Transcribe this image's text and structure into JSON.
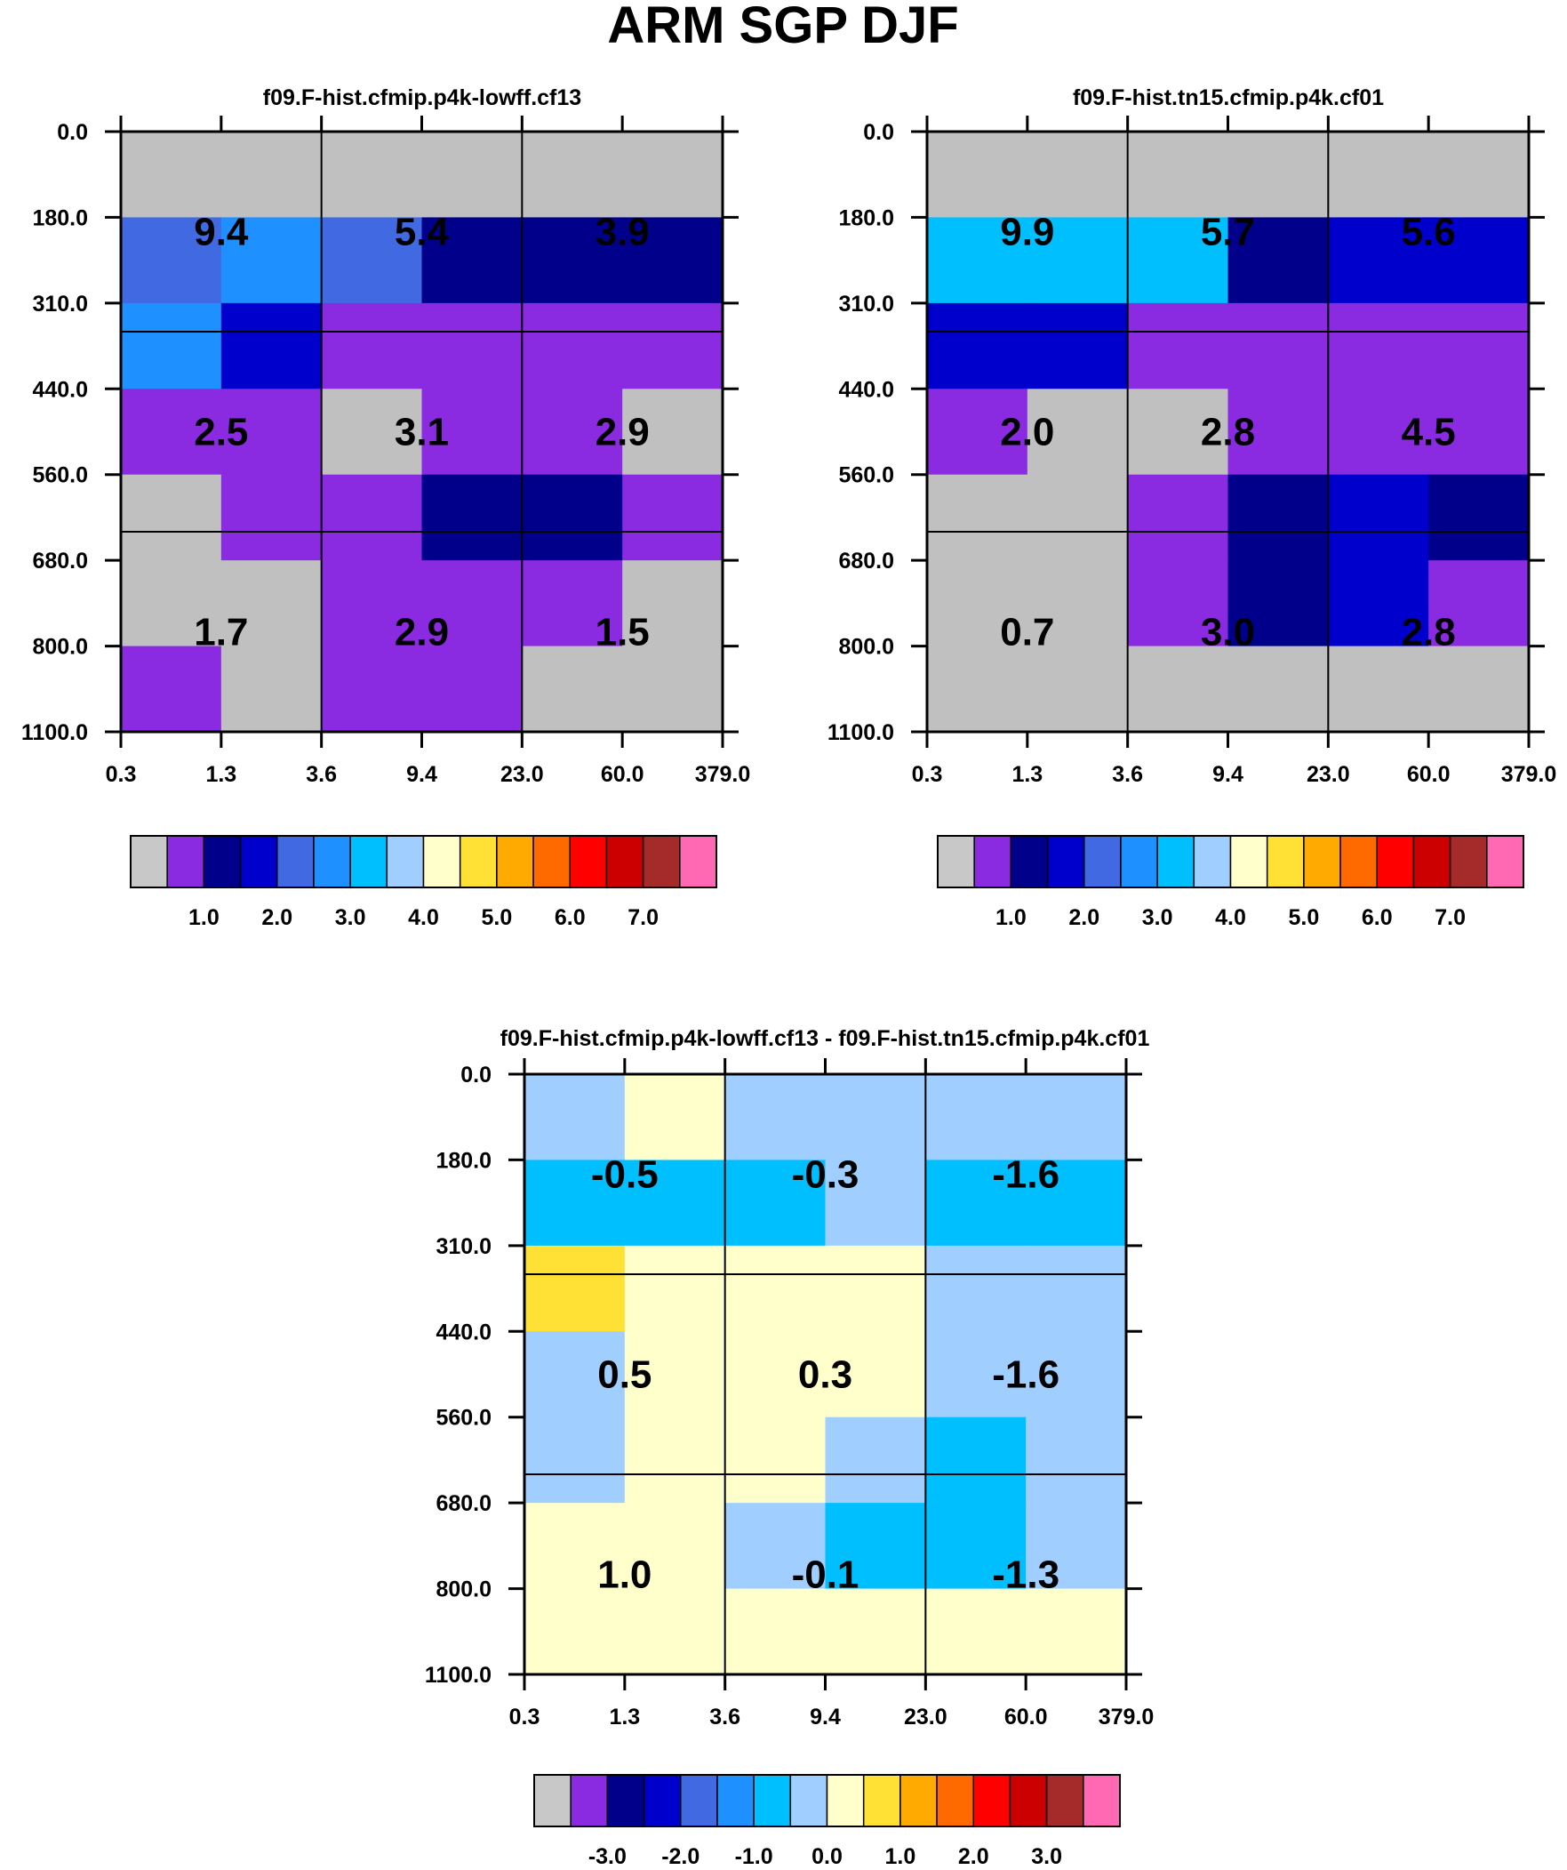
{
  "title": "ARM SGP DJF",
  "chart_data": [
    {
      "type": "heatmap",
      "title": "f09.F-hist.cfmip.p4k-lowff.cf13",
      "x_ticks": [
        "0.3",
        "1.3",
        "3.6",
        "9.4",
        "23.0",
        "60.0",
        "379.0"
      ],
      "y_ticks": [
        "0.0",
        "180.0",
        "310.0",
        "440.0",
        "560.0",
        "680.0",
        "800.0",
        "1100.0"
      ],
      "cell_colors": [
        [
          "#c0c0c0",
          "#c0c0c0",
          "#c0c0c0",
          "#c0c0c0",
          "#c0c0c0",
          "#c0c0c0"
        ],
        [
          "#4169e1",
          "#1e90ff",
          "#4169e1",
          "#00008b",
          "#00008b",
          "#00008b"
        ],
        [
          "#1e90ff",
          "#0000cd",
          "#8a2be2",
          "#8a2be2",
          "#8a2be2",
          "#8a2be2"
        ],
        [
          "#8a2be2",
          "#8a2be2",
          "#c0c0c0",
          "#8a2be2",
          "#8a2be2",
          "#c0c0c0"
        ],
        [
          "#c0c0c0",
          "#8a2be2",
          "#8a2be2",
          "#00008b",
          "#00008b",
          "#8a2be2"
        ],
        [
          "#c0c0c0",
          "#c0c0c0",
          "#8a2be2",
          "#8a2be2",
          "#8a2be2",
          "#c0c0c0"
        ],
        [
          "#8a2be2",
          "#c0c0c0",
          "#8a2be2",
          "#8a2be2",
          "#c0c0c0",
          "#c0c0c0"
        ]
      ],
      "group_values": [
        [
          "9.4",
          "5.4",
          "3.9"
        ],
        [
          "2.5",
          "3.1",
          "2.9"
        ],
        [
          "1.7",
          "2.9",
          "1.5"
        ]
      ],
      "colorbar": {
        "colors": [
          "#c8c8c8",
          "#8a2be2",
          "#00008b",
          "#0000cd",
          "#4169e1",
          "#1e90ff",
          "#00bfff",
          "#a0cfff",
          "#ffffcc",
          "#ffe135",
          "#ffaa00",
          "#ff6a00",
          "#ff0000",
          "#cc0000",
          "#a52a2a",
          "#ff69b4"
        ],
        "labels": [
          "1.0",
          "2.0",
          "3.0",
          "4.0",
          "5.0",
          "6.0",
          "7.0"
        ]
      }
    },
    {
      "type": "heatmap",
      "title": "f09.F-hist.tn15.cfmip.p4k.cf01",
      "x_ticks": [
        "0.3",
        "1.3",
        "3.6",
        "9.4",
        "23.0",
        "60.0",
        "379.0"
      ],
      "y_ticks": [
        "0.0",
        "180.0",
        "310.0",
        "440.0",
        "560.0",
        "680.0",
        "800.0",
        "1100.0"
      ],
      "cell_colors": [
        [
          "#c0c0c0",
          "#c0c0c0",
          "#c0c0c0",
          "#c0c0c0",
          "#c0c0c0",
          "#c0c0c0"
        ],
        [
          "#00bfff",
          "#00bfff",
          "#00bfff",
          "#00008b",
          "#0000cd",
          "#0000cd"
        ],
        [
          "#0000cd",
          "#0000cd",
          "#8a2be2",
          "#8a2be2",
          "#8a2be2",
          "#8a2be2"
        ],
        [
          "#8a2be2",
          "#c0c0c0",
          "#c0c0c0",
          "#8a2be2",
          "#8a2be2",
          "#8a2be2"
        ],
        [
          "#c0c0c0",
          "#c0c0c0",
          "#8a2be2",
          "#00008b",
          "#0000cd",
          "#00008b"
        ],
        [
          "#c0c0c0",
          "#c0c0c0",
          "#8a2be2",
          "#00008b",
          "#0000cd",
          "#8a2be2"
        ],
        [
          "#c0c0c0",
          "#c0c0c0",
          "#c0c0c0",
          "#c0c0c0",
          "#c0c0c0",
          "#c0c0c0"
        ]
      ],
      "group_values": [
        [
          "9.9",
          "5.7",
          "5.6"
        ],
        [
          "2.0",
          "2.8",
          "4.5"
        ],
        [
          "0.7",
          "3.0",
          "2.8"
        ]
      ],
      "colorbar": {
        "colors": [
          "#c8c8c8",
          "#8a2be2",
          "#00008b",
          "#0000cd",
          "#4169e1",
          "#1e90ff",
          "#00bfff",
          "#a0cfff",
          "#ffffcc",
          "#ffe135",
          "#ffaa00",
          "#ff6a00",
          "#ff0000",
          "#cc0000",
          "#a52a2a",
          "#ff69b4"
        ],
        "labels": [
          "1.0",
          "2.0",
          "3.0",
          "4.0",
          "5.0",
          "6.0",
          "7.0"
        ]
      }
    },
    {
      "type": "heatmap",
      "title": "f09.F-hist.cfmip.p4k-lowff.cf13 - f09.F-hist.tn15.cfmip.p4k.cf01",
      "x_ticks": [
        "0.3",
        "1.3",
        "3.6",
        "9.4",
        "23.0",
        "60.0",
        "379.0"
      ],
      "y_ticks": [
        "0.0",
        "180.0",
        "310.0",
        "440.0",
        "560.0",
        "680.0",
        "800.0",
        "1100.0"
      ],
      "cell_colors": [
        [
          "#a0cfff",
          "#ffffcc",
          "#a0cfff",
          "#a0cfff",
          "#a0cfff",
          "#a0cfff"
        ],
        [
          "#00bfff",
          "#00bfff",
          "#00bfff",
          "#a0cfff",
          "#00bfff",
          "#00bfff"
        ],
        [
          "#ffe135",
          "#ffffcc",
          "#ffffcc",
          "#ffffcc",
          "#a0cfff",
          "#a0cfff"
        ],
        [
          "#a0cfff",
          "#ffffcc",
          "#ffffcc",
          "#ffffcc",
          "#a0cfff",
          "#a0cfff"
        ],
        [
          "#a0cfff",
          "#ffffcc",
          "#ffffcc",
          "#a0cfff",
          "#00bfff",
          "#a0cfff"
        ],
        [
          "#ffffcc",
          "#ffffcc",
          "#a0cfff",
          "#00bfff",
          "#00bfff",
          "#a0cfff"
        ],
        [
          "#ffffcc",
          "#ffffcc",
          "#ffffcc",
          "#ffffcc",
          "#ffffcc",
          "#ffffcc"
        ]
      ],
      "group_values": [
        [
          "-0.5",
          "-0.3",
          "-1.6"
        ],
        [
          "0.5",
          "0.3",
          "-1.6"
        ],
        [
          "1.0",
          "-0.1",
          "-1.3"
        ]
      ],
      "colorbar": {
        "colors": [
          "#c8c8c8",
          "#8a2be2",
          "#00008b",
          "#0000cd",
          "#4169e1",
          "#1e90ff",
          "#00bfff",
          "#a0cfff",
          "#ffffcc",
          "#ffe135",
          "#ffaa00",
          "#ff6a00",
          "#ff0000",
          "#cc0000",
          "#a52a2a",
          "#ff69b4"
        ],
        "labels": [
          "-3.0",
          "-2.0",
          "-1.0",
          "0.0",
          "1.0",
          "2.0",
          "3.0"
        ]
      }
    }
  ]
}
